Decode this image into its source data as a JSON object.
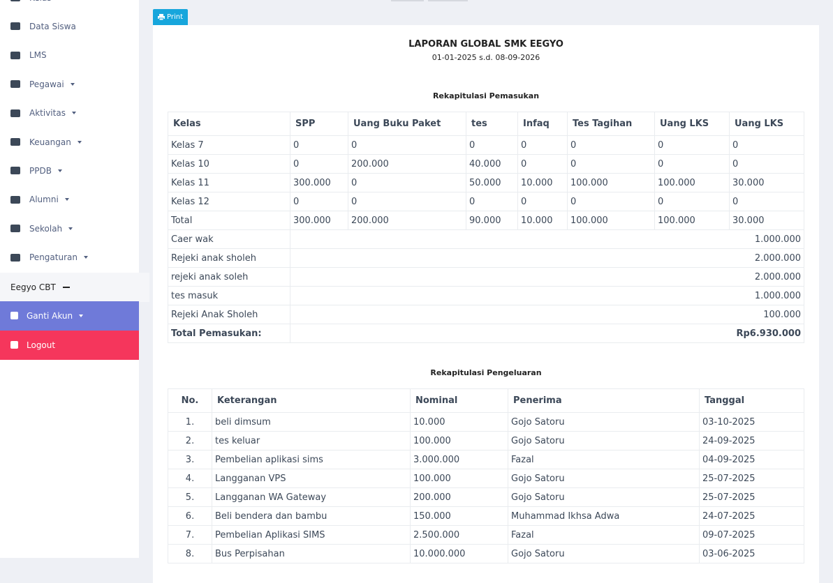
{
  "sidebar": {
    "items": [
      {
        "label": "Kelas"
      },
      {
        "label": "Data Siswa"
      },
      {
        "label": "LMS"
      },
      {
        "label": "Pegawai",
        "dropdown": true
      },
      {
        "label": "Aktivitas",
        "dropdown": true
      },
      {
        "label": "Keuangan",
        "dropdown": true
      },
      {
        "label": "PPDB",
        "dropdown": true
      },
      {
        "label": "Alumni",
        "dropdown": true
      },
      {
        "label": "Sekolah",
        "dropdown": true
      },
      {
        "label": "Pengaturan",
        "dropdown": true
      }
    ],
    "cbt": "Eegyo CBT",
    "account": "Ganti Akun",
    "logout": "Logout"
  },
  "print_button": "Print",
  "report": {
    "title": "LAPORAN GLOBAL SMK EEGYO",
    "period": "01-01-2025 s.d. 08-09-2026",
    "income": {
      "title": "Rekapitulasi Pemasukan",
      "headers": [
        "Kelas",
        "SPP",
        "Uang Buku Paket",
        "tes",
        "Infaq",
        "Tes Tagihan",
        "Uang LKS",
        "Uang LKS"
      ],
      "rows": [
        [
          "Kelas 7",
          "0",
          "0",
          "0",
          "0",
          "0",
          "0",
          "0"
        ],
        [
          "Kelas 10",
          "0",
          "200.000",
          "40.000",
          "0",
          "0",
          "0",
          "0"
        ],
        [
          "Kelas 11",
          "300.000",
          "0",
          "50.000",
          "10.000",
          "100.000",
          "100.000",
          "30.000"
        ],
        [
          "Kelas 12",
          "0",
          "0",
          "0",
          "0",
          "0",
          "0",
          "0"
        ],
        [
          "Total",
          "300.000",
          "200.000",
          "90.000",
          "10.000",
          "100.000",
          "100.000",
          "30.000"
        ]
      ],
      "other": [
        [
          "Caer wak",
          "1.000.000"
        ],
        [
          "Rejeki anak sholeh",
          "2.000.000"
        ],
        [
          "rejeki anak soleh",
          "2.000.000"
        ],
        [
          "tes masuk",
          "1.000.000"
        ],
        [
          "Rejeki Anak Sholeh",
          "100.000"
        ]
      ],
      "total": {
        "label": "Total Pemasukan:",
        "value": "Rp6.930.000"
      }
    },
    "expense": {
      "title": "Rekapitulasi Pengeluaran",
      "headers": [
        "No.",
        "Keterangan",
        "Nominal",
        "Penerima",
        "Tanggal"
      ],
      "rows": [
        [
          "1.",
          "beli dimsum",
          "10.000",
          "Gojo Satoru",
          "03-10-2025"
        ],
        [
          "2.",
          "tes keluar",
          "100.000",
          "Gojo Satoru",
          "24-09-2025"
        ],
        [
          "3.",
          "Pembelian aplikasi sims",
          "3.000.000",
          "Fazal",
          "04-09-2025"
        ],
        [
          "4.",
          "Langganan VPS",
          "100.000",
          "Gojo Satoru",
          "25-07-2025"
        ],
        [
          "5.",
          "Langganan WA Gateway",
          "200.000",
          "Gojo Satoru",
          "25-07-2025"
        ],
        [
          "6.",
          "Beli bendera dan bambu",
          "150.000",
          "Muhammad Ikhsa Adwa",
          "24-07-2025"
        ],
        [
          "7.",
          "Pembelian Aplikasi SIMS",
          "2.500.000",
          "Fazal",
          "09-07-2025"
        ],
        [
          "8.",
          "Bus Perpisahan",
          "10.000.000",
          "Gojo Satoru",
          "03-06-2025"
        ]
      ]
    }
  }
}
